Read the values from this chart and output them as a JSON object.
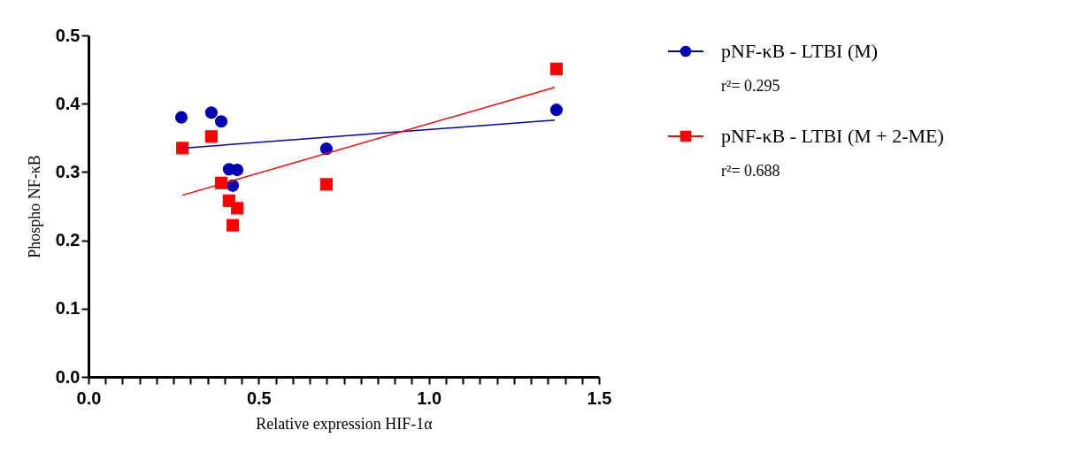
{
  "chart_data": {
    "type": "scatter",
    "xlabel": "Relative expression HIF-1α",
    "ylabel": "Phospho NF-κB",
    "xlim": [
      0,
      1.5
    ],
    "ylim": [
      0,
      0.5
    ],
    "xticks": [
      {
        "value": 0,
        "label": "0.0"
      },
      {
        "value": 0.05,
        "label": null
      },
      {
        "value": 0.1,
        "label": null
      },
      {
        "value": 0.15,
        "label": null
      },
      {
        "value": 0.2,
        "label": null
      },
      {
        "value": 0.25,
        "label": null
      },
      {
        "value": 0.3,
        "label": null
      },
      {
        "value": 0.35,
        "label": null
      },
      {
        "value": 0.4,
        "label": null
      },
      {
        "value": 0.45,
        "label": null
      },
      {
        "value": 0.5,
        "label": "0.5"
      },
      {
        "value": 0.55,
        "label": null
      },
      {
        "value": 0.6,
        "label": null
      },
      {
        "value": 0.65,
        "label": null
      },
      {
        "value": 0.7,
        "label": null
      },
      {
        "value": 0.75,
        "label": null
      },
      {
        "value": 0.8,
        "label": null
      },
      {
        "value": 0.85,
        "label": null
      },
      {
        "value": 0.9,
        "label": null
      },
      {
        "value": 0.95,
        "label": null
      },
      {
        "value": 1.0,
        "label": "1.0"
      },
      {
        "value": 1.05,
        "label": null
      },
      {
        "value": 1.1,
        "label": null
      },
      {
        "value": 1.15,
        "label": null
      },
      {
        "value": 1.2,
        "label": null
      },
      {
        "value": 1.25,
        "label": null
      },
      {
        "value": 1.3,
        "label": null
      },
      {
        "value": 1.35,
        "label": null
      },
      {
        "value": 1.4,
        "label": null
      },
      {
        "value": 1.45,
        "label": null
      },
      {
        "value": 1.5,
        "label": "1.5"
      }
    ],
    "yticks": [
      {
        "value": 0,
        "label": "0.0"
      },
      {
        "value": 0.1,
        "label": "0.1"
      },
      {
        "value": 0.2,
        "label": "0.2"
      },
      {
        "value": 0.3,
        "label": "0.3"
      },
      {
        "value": 0.4,
        "label": "0.4"
      },
      {
        "value": 0.5,
        "label": "0.5"
      }
    ],
    "grid": false,
    "legend": "top right",
    "series": [
      {
        "name": "pNF-κB - LTBI (M)",
        "color": "#0000b4",
        "marker": "circle",
        "x": [
          0.273,
          0.361,
          0.39,
          0.413,
          0.437,
          0.424,
          0.699,
          1.375
        ],
        "values": [
          0.38,
          0.387,
          0.374,
          0.304,
          0.303,
          0.28,
          0.334,
          0.391
        ]
      },
      {
        "name": "pNF-κB - LTBI (M + 2-ME)",
        "color": "#ff0000",
        "marker": "square",
        "x": [
          0.276,
          0.361,
          0.39,
          0.413,
          0.437,
          0.424,
          0.699,
          1.375
        ],
        "values": [
          0.335,
          0.352,
          0.284,
          0.258,
          0.247,
          0.222,
          0.282,
          0.451
        ]
      },
      {
        "type": "line",
        "color": "#0000b4",
        "x": [
          0.276,
          1.37
        ],
        "values": [
          0.335,
          0.376
        ]
      },
      {
        "type": "line",
        "color": "#ff0000",
        "x": [
          0.276,
          1.37
        ],
        "values": [
          0.266,
          0.424
        ]
      }
    ],
    "annotations": [
      "r²= 0.295",
      "r²= 0.688"
    ]
  }
}
